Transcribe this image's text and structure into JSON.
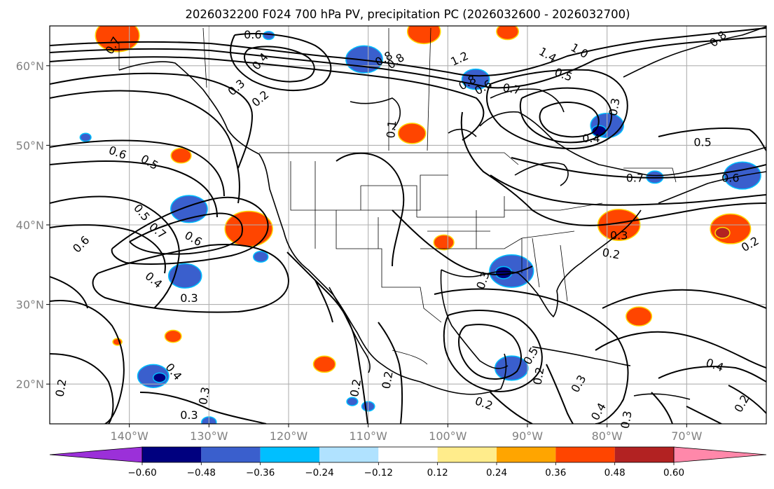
{
  "title": "2026032200 F024 700 hPa PV, precipitation PC (2026032600 - 2026032700)",
  "map": {
    "lon_range": [
      -150,
      -60
    ],
    "lat_range": [
      15,
      65
    ],
    "lat_ticks": [
      {
        "lat": 60,
        "label": "60°N"
      },
      {
        "lat": 50,
        "label": "50°N"
      },
      {
        "lat": 40,
        "label": "40°N"
      },
      {
        "lat": 30,
        "label": "30°N"
      },
      {
        "lat": 20,
        "label": "20°N"
      }
    ],
    "lon_ticks": [
      {
        "lon": -140,
        "label": "140°W"
      },
      {
        "lon": -130,
        "label": "130°W"
      },
      {
        "lon": -120,
        "label": "120°W"
      },
      {
        "lon": -110,
        "label": "110°W"
      },
      {
        "lon": -100,
        "label": "100°W"
      },
      {
        "lon": -90,
        "label": "90°W"
      },
      {
        "lon": -80,
        "label": "80°W"
      },
      {
        "lon": -70,
        "label": "70°W"
      }
    ],
    "gridlines": true
  },
  "colorbar": {
    "boundaries": [
      -0.6,
      -0.48,
      -0.36,
      -0.24,
      -0.12,
      0.12,
      0.24,
      0.36,
      0.48,
      0.6
    ],
    "tick_labels": [
      "−0.60",
      "−0.48",
      "−0.36",
      "−0.24",
      "−0.12",
      "0.12",
      "0.24",
      "0.36",
      "0.48",
      "0.60"
    ],
    "colors": [
      "#9b30d9",
      "#00007f",
      "#3a5fcd",
      "#00bfff",
      "#b0e2ff",
      "#ffffff",
      "#ffec8b",
      "#ffa500",
      "#ff4500",
      "#b22222",
      "#ff88aa"
    ],
    "extend": "both"
  },
  "contour_labels": [
    {
      "text": "0.6",
      "lon": -124.5,
      "lat": 63.8,
      "rot": 0
    },
    {
      "text": "0.7",
      "lon": -142,
      "lat": 62.5,
      "rot": -60
    },
    {
      "text": "0.8",
      "lon": -106.5,
      "lat": 60.5,
      "rot": -35
    },
    {
      "text": "0.4",
      "lon": -123.5,
      "lat": 60.5,
      "rot": -50
    },
    {
      "text": "0.8",
      "lon": -108,
      "lat": 60.8,
      "rot": -30
    },
    {
      "text": "1.2",
      "lon": -98.5,
      "lat": 60.8,
      "rot": -25
    },
    {
      "text": "1.4",
      "lon": -87.5,
      "lat": 61.3,
      "rot": 30
    },
    {
      "text": "1.0",
      "lon": -83.5,
      "lat": 61.8,
      "rot": 30
    },
    {
      "text": "0.8",
      "lon": -66,
      "lat": 63.3,
      "rot": -40
    },
    {
      "text": "0.3",
      "lon": -126.5,
      "lat": 57.2,
      "rot": -40
    },
    {
      "text": "0.2",
      "lon": -123.5,
      "lat": 55.8,
      "rot": -40
    },
    {
      "text": "0.8",
      "lon": -97.5,
      "lat": 57.8,
      "rot": -30
    },
    {
      "text": "0.6",
      "lon": -95.5,
      "lat": 57.2,
      "rot": -30
    },
    {
      "text": "0.7",
      "lon": -92,
      "lat": 57.0,
      "rot": 10
    },
    {
      "text": "0.5",
      "lon": -85.5,
      "lat": 58.8,
      "rot": 20
    },
    {
      "text": "0.3",
      "lon": -79,
      "lat": 54.8,
      "rot": -80
    },
    {
      "text": "0.4",
      "lon": -82,
      "lat": 50.8,
      "rot": 0
    },
    {
      "text": "0.5",
      "lon": -68,
      "lat": 50.3,
      "rot": 0
    },
    {
      "text": "0.1",
      "lon": -107,
      "lat": 52.0,
      "rot": -85
    },
    {
      "text": "0.6",
      "lon": -141.5,
      "lat": 49.0,
      "rot": 20
    },
    {
      "text": "0.5",
      "lon": -137.5,
      "lat": 47.8,
      "rot": 30
    },
    {
      "text": "0.7",
      "lon": -76.5,
      "lat": 45.8,
      "rot": 0
    },
    {
      "text": "0.6",
      "lon": -64.5,
      "lat": 45.8,
      "rot": 0
    },
    {
      "text": "0.5",
      "lon": -138.5,
      "lat": 41.5,
      "rot": 50
    },
    {
      "text": "0.7",
      "lon": -136.5,
      "lat": 39.2,
      "rot": 40
    },
    {
      "text": "0.6",
      "lon": -132,
      "lat": 38.2,
      "rot": 30
    },
    {
      "text": "0.6",
      "lon": -146,
      "lat": 37.5,
      "rot": -45
    },
    {
      "text": "0.3",
      "lon": -78.5,
      "lat": 38.6,
      "rot": 0
    },
    {
      "text": "0.2",
      "lon": -79.5,
      "lat": 36.3,
      "rot": 10
    },
    {
      "text": "0.2",
      "lon": -62,
      "lat": 37.5,
      "rot": -30
    },
    {
      "text": "0.4",
      "lon": -137,
      "lat": 33.0,
      "rot": 40
    },
    {
      "text": "0.3",
      "lon": -132.5,
      "lat": 30.7,
      "rot": 0
    },
    {
      "text": "0.5",
      "lon": -89.5,
      "lat": 23.5,
      "rot": -60
    },
    {
      "text": "0.4",
      "lon": -134.5,
      "lat": 21.5,
      "rot": 50
    },
    {
      "text": "0.2",
      "lon": -148.5,
      "lat": 19.5,
      "rot": -80
    },
    {
      "text": "0.3",
      "lon": -130.5,
      "lat": 18.5,
      "rot": -80
    },
    {
      "text": "0.3",
      "lon": -132.5,
      "lat": 16.0,
      "rot": 0
    },
    {
      "text": "0.2",
      "lon": -111.5,
      "lat": 19.5,
      "rot": -80
    },
    {
      "text": "0.2",
      "lon": -107.5,
      "lat": 20.5,
      "rot": -80
    },
    {
      "text": "0.2",
      "lon": -95.5,
      "lat": 17.5,
      "rot": 20
    },
    {
      "text": "0.2",
      "lon": -88.5,
      "lat": 21.0,
      "rot": -80
    },
    {
      "text": "0.3",
      "lon": -83.5,
      "lat": 20.0,
      "rot": -60
    },
    {
      "text": "0.4",
      "lon": -81,
      "lat": 16.5,
      "rot": -60
    },
    {
      "text": "0.3",
      "lon": -77.5,
      "lat": 15.5,
      "rot": -80
    },
    {
      "text": "0.4",
      "lon": -66.5,
      "lat": 22.3,
      "rot": 20
    },
    {
      "text": "0.2",
      "lon": -63,
      "lat": 17.5,
      "rot": -60
    },
    {
      "text": "0.3",
      "lon": -95.5,
      "lat": 33.0,
      "rot": -70
    }
  ],
  "precip_blobs": [
    {
      "lon": -141.5,
      "lat": 63.8,
      "r": 2.4,
      "c": "#ff4500"
    },
    {
      "lon": -103,
      "lat": 64.3,
      "r": 1.8,
      "c": "#ff4500"
    },
    {
      "lon": -92.5,
      "lat": 64.3,
      "r": 1.2,
      "c": "#ff4500"
    },
    {
      "lon": -110.5,
      "lat": 60.8,
      "r": 2.0,
      "c": "#3a5fcd"
    },
    {
      "lon": -96.5,
      "lat": 58.3,
      "r": 1.5,
      "c": "#3a5fcd"
    },
    {
      "lon": -80,
      "lat": 52.5,
      "r": 1.8,
      "c": "#3a5fcd"
    },
    {
      "lon": -81,
      "lat": 51.8,
      "r": 0.8,
      "c": "#00007f"
    },
    {
      "lon": -104.5,
      "lat": 51.5,
      "r": 1.5,
      "c": "#ff4500"
    },
    {
      "lon": -145.5,
      "lat": 51.0,
      "r": 0.6,
      "c": "#3a5fcd"
    },
    {
      "lon": -133.5,
      "lat": 48.7,
      "r": 1.1,
      "c": "#ff4500"
    },
    {
      "lon": -63,
      "lat": 46.2,
      "r": 2.0,
      "c": "#3a5fcd"
    },
    {
      "lon": -132.5,
      "lat": 42.0,
      "r": 2.0,
      "c": "#3a5fcd"
    },
    {
      "lon": -125.0,
      "lat": 39.5,
      "r": 2.6,
      "c": "#ff4500"
    },
    {
      "lon": -78.5,
      "lat": 40.0,
      "r": 2.3,
      "c": "#ff4500"
    },
    {
      "lon": -64.5,
      "lat": 39.5,
      "r": 2.2,
      "c": "#ff4500"
    },
    {
      "lon": -65.5,
      "lat": 39.0,
      "r": 0.8,
      "c": "#b22222"
    },
    {
      "lon": -100.5,
      "lat": 37.8,
      "r": 1.1,
      "c": "#ff4500"
    },
    {
      "lon": -92,
      "lat": 34.2,
      "r": 2.4,
      "c": "#3a5fcd"
    },
    {
      "lon": -93,
      "lat": 34.0,
      "r": 0.9,
      "c": "#00007f"
    },
    {
      "lon": -133,
      "lat": 33.6,
      "r": 1.8,
      "c": "#3a5fcd"
    },
    {
      "lon": -123.5,
      "lat": 36.0,
      "r": 0.8,
      "c": "#3a5fcd"
    },
    {
      "lon": -76,
      "lat": 28.5,
      "r": 1.4,
      "c": "#ff4500"
    },
    {
      "lon": -134.5,
      "lat": 26.0,
      "r": 0.9,
      "c": "#ff4500"
    },
    {
      "lon": -141.5,
      "lat": 25.3,
      "r": 0.5,
      "c": "#ff4500"
    },
    {
      "lon": -115.5,
      "lat": 22.5,
      "r": 1.2,
      "c": "#ff4500"
    },
    {
      "lon": -137,
      "lat": 21.0,
      "r": 1.7,
      "c": "#3a5fcd"
    },
    {
      "lon": -136.2,
      "lat": 20.8,
      "r": 0.7,
      "c": "#00007f"
    },
    {
      "lon": -92,
      "lat": 22.0,
      "r": 1.8,
      "c": "#3a5fcd"
    },
    {
      "lon": -110,
      "lat": 17.2,
      "r": 0.7,
      "c": "#3a5fcd"
    },
    {
      "lon": -112,
      "lat": 17.8,
      "r": 0.6,
      "c": "#3a5fcd"
    },
    {
      "lon": -130,
      "lat": 15.2,
      "r": 0.8,
      "c": "#3a5fcd"
    },
    {
      "lon": -74,
      "lat": 46.0,
      "r": 0.9,
      "c": "#3a5fcd"
    },
    {
      "lon": -122.5,
      "lat": 63.8,
      "r": 0.6,
      "c": "#3a5fcd"
    }
  ]
}
